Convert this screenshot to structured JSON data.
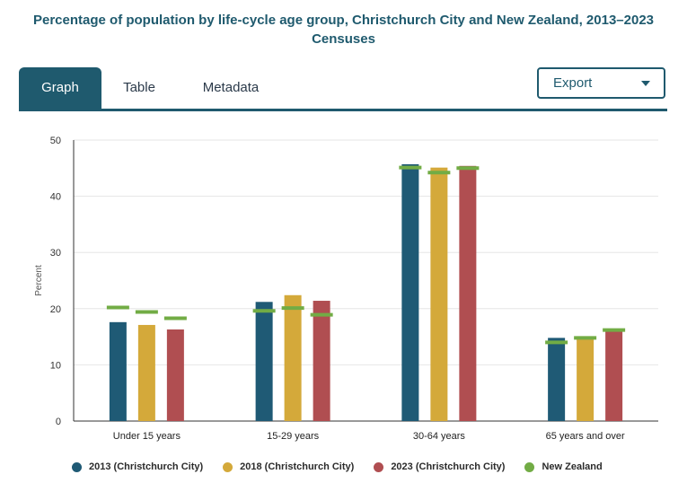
{
  "header": {
    "title": "Percentage of population by life-cycle age group, Christchurch City and New Zealand, 2013–2023 Censuses"
  },
  "tabs": [
    {
      "label": "Graph",
      "active": true
    },
    {
      "label": "Table",
      "active": false
    },
    {
      "label": "Metadata",
      "active": false
    }
  ],
  "export": {
    "label": "Export",
    "icon": "caret-down-icon"
  },
  "colors": {
    "accent": "#1f5a6e",
    "s2013": "#1f5a75",
    "s2018": "#d4a93a",
    "s2023": "#b04e51",
    "nz": "#72ac45"
  },
  "chart_data": {
    "type": "bar",
    "title": "",
    "xlabel": "",
    "ylabel": "Percent",
    "ylim": [
      0,
      50
    ],
    "yticks": [
      "0",
      "10",
      "20",
      "30",
      "40",
      "50"
    ],
    "grid": true,
    "legend_position": "bottom",
    "categories": [
      "Under 15 years",
      "15-29 years",
      "30-64 years",
      "65 years and over"
    ],
    "series": [
      {
        "name": "2013 (Christchurch City)",
        "values": [
          17.6,
          21.2,
          45.7,
          14.8
        ]
      },
      {
        "name": "2018 (Christchurch City)",
        "values": [
          17.1,
          22.4,
          45.1,
          15.1
        ]
      },
      {
        "name": "2023 (Christchurch City)",
        "values": [
          16.3,
          21.4,
          45.4,
          16.3
        ]
      }
    ],
    "reference_series": {
      "name": "New Zealand",
      "marker": "horizontal-line",
      "values": [
        [
          20.2,
          19.4,
          18.3
        ],
        [
          19.6,
          20.1,
          18.9
        ],
        [
          45.1,
          44.2,
          45.0
        ],
        [
          14.0,
          14.8,
          16.2
        ]
      ]
    }
  }
}
